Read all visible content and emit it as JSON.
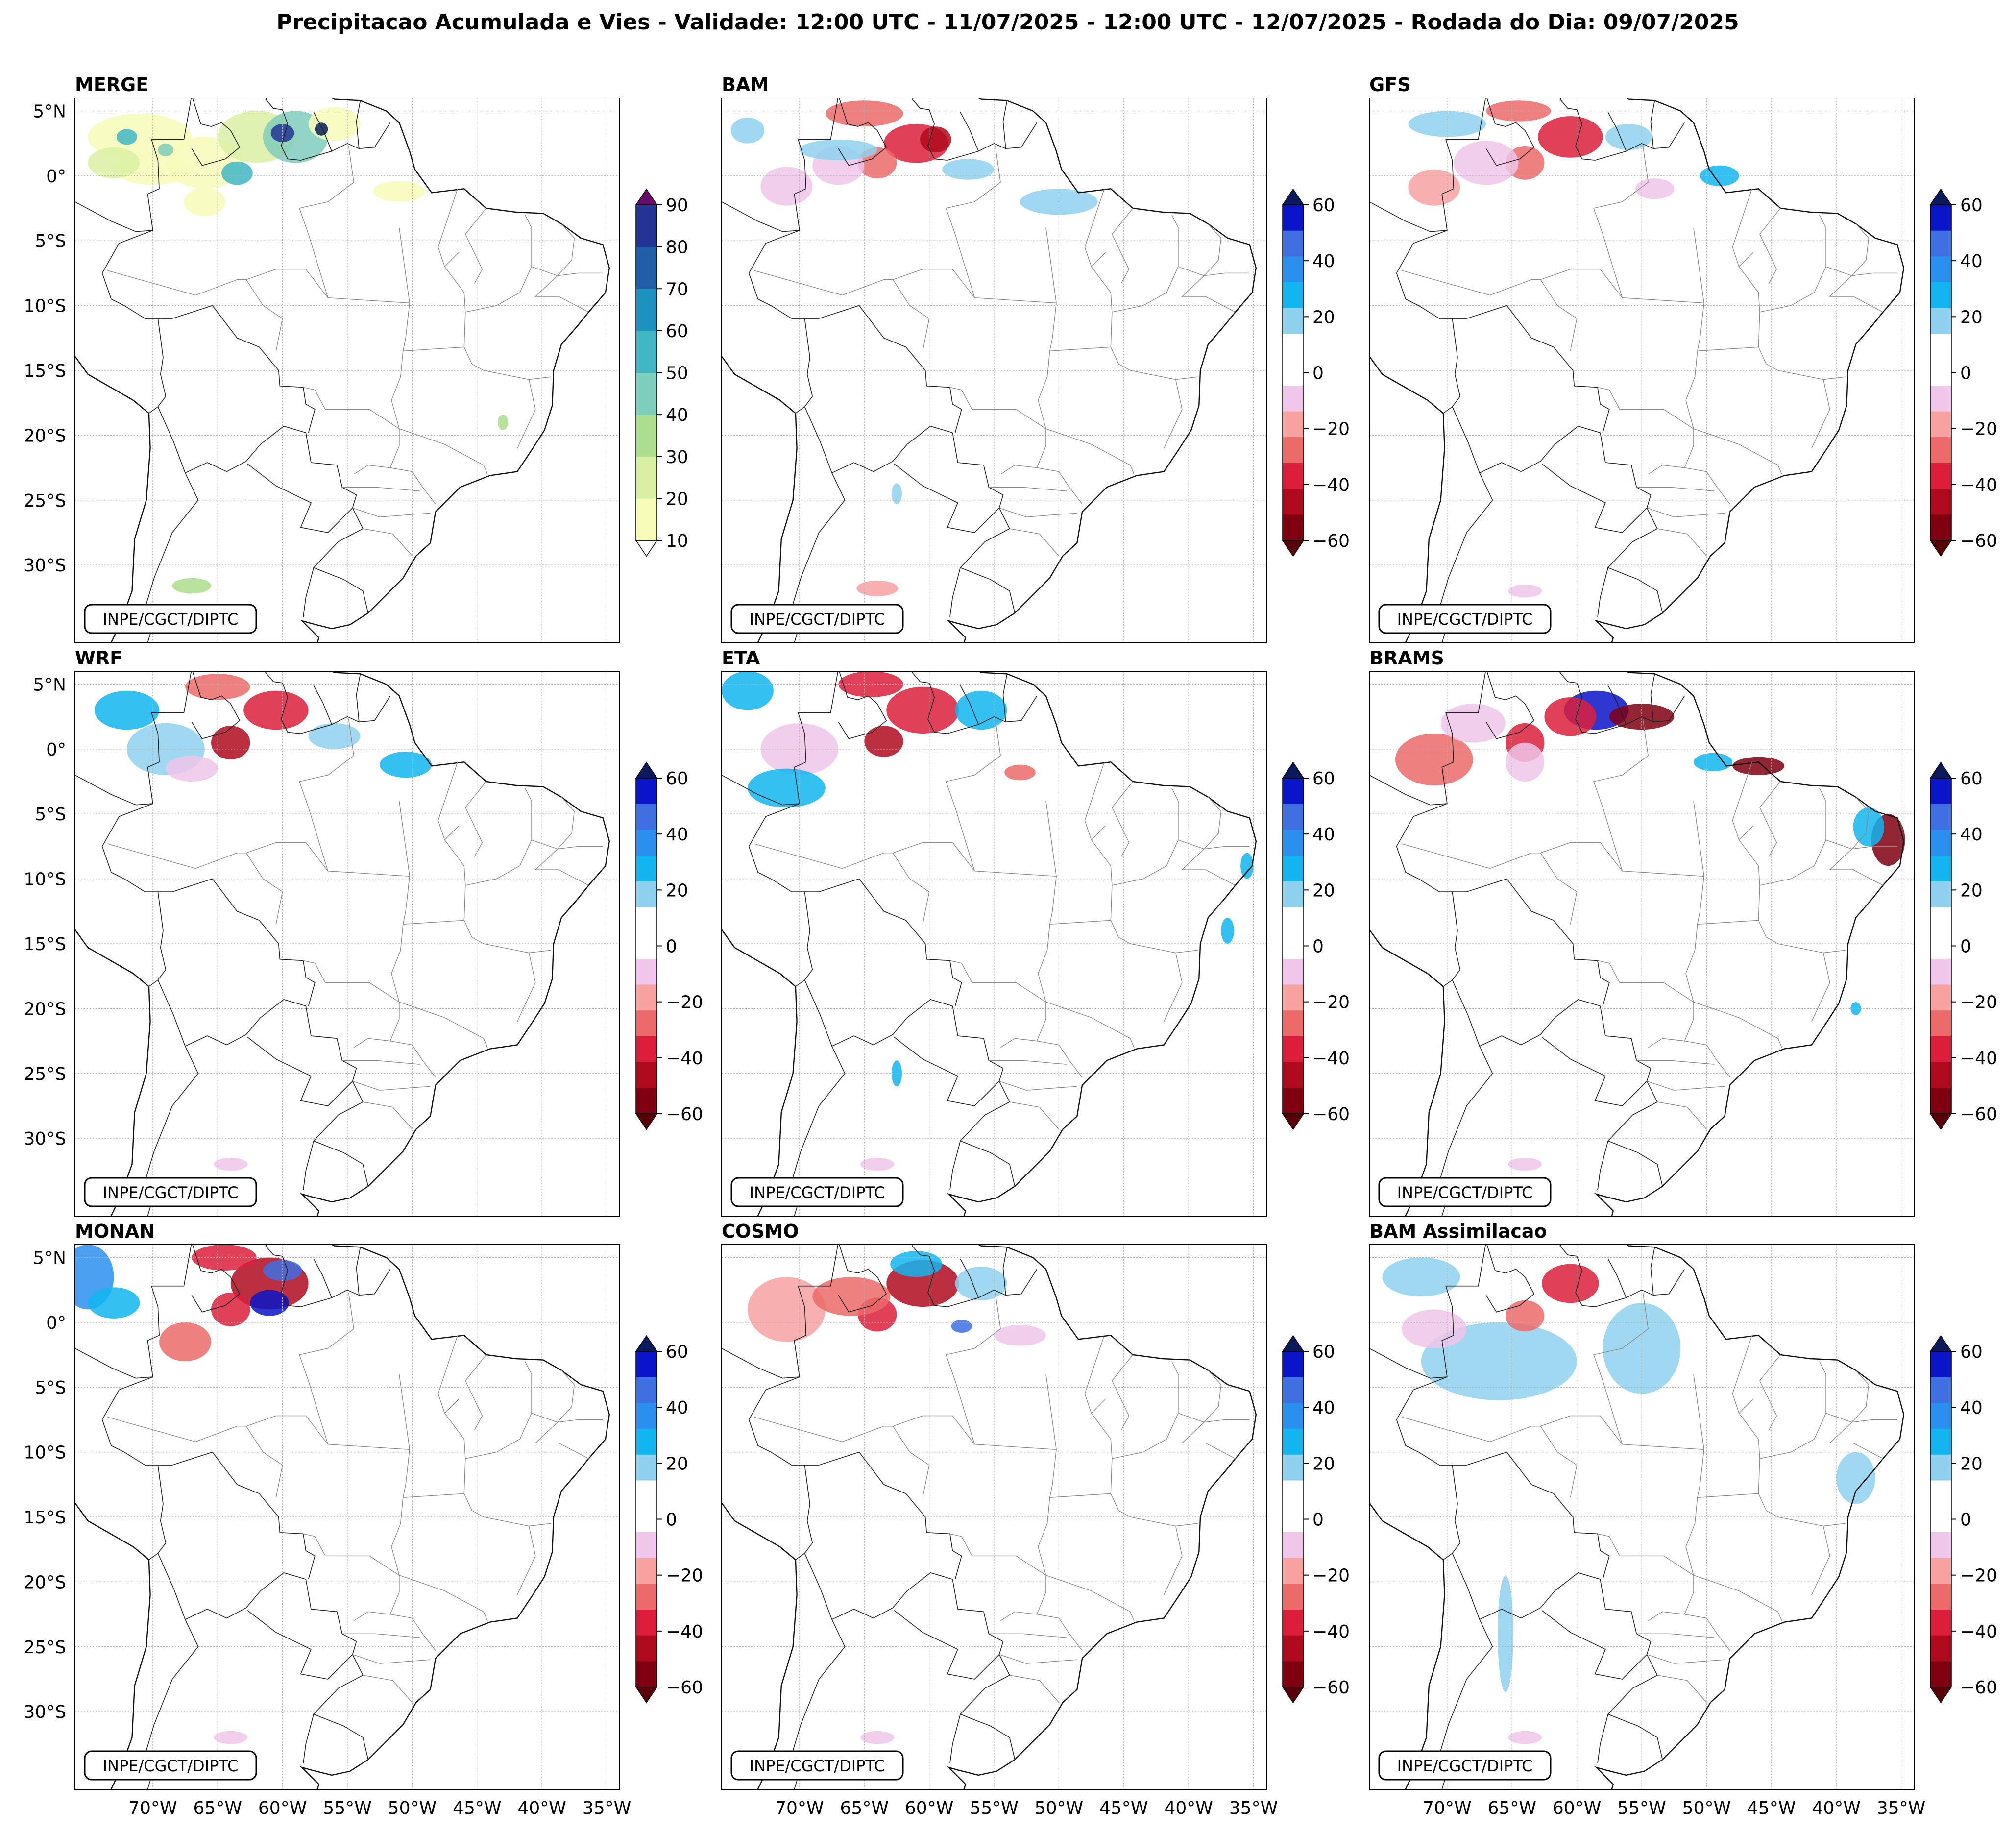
{
  "title": "Precipitacao Acumulada e Vies - Validade: 12:00 UTC - 11/07/2025 - 12:00 UTC - 12/07/2025 - Rodada do Dia: 09/07/2025",
  "credit": "INPE/CGCT/DIPTC",
  "lat_labels": [
    "5°N",
    "0°",
    "5°S",
    "10°S",
    "15°S",
    "20°S",
    "25°S",
    "30°S"
  ],
  "lon_labels": [
    "70°W",
    "65°W",
    "60°W",
    "55°W",
    "50°W",
    "45°W",
    "40°W",
    "35°W"
  ],
  "merge_colorbar": {
    "ticks": [
      "10",
      "20",
      "30",
      "40",
      "50",
      "60",
      "70",
      "80",
      "90"
    ],
    "colors": [
      "#f7fcb9",
      "#d9f0a3",
      "#addd8e",
      "#7fcdbb",
      "#41b6c4",
      "#1d91c0",
      "#225ea8",
      "#253494",
      "#081d58"
    ],
    "over_color": "#6a0a6a"
  },
  "bias_colorbar": {
    "ticks": [
      "60",
      "40",
      "20",
      "0",
      "−20",
      "−40",
      "−60"
    ],
    "colors_top_to_bottom": [
      "#0a14c8",
      "#3f6fe0",
      "#2b8ff0",
      "#12b5f0",
      "#8fd0ee",
      "#ffffff",
      "#ffffff",
      "#f0c6ea",
      "#f7a1a1",
      "#ec6a6a",
      "#dc1e3c",
      "#b00a1e",
      "#800011"
    ],
    "over_color": "#0a1a5c",
    "under_color": "#5a0008"
  },
  "panels": [
    {
      "name": "MERGE",
      "type": "precip"
    },
    {
      "name": "BAM",
      "type": "bias"
    },
    {
      "name": "GFS",
      "type": "bias"
    },
    {
      "name": "WRF",
      "type": "bias"
    },
    {
      "name": "ETA",
      "type": "bias"
    },
    {
      "name": "BRAMS",
      "type": "bias"
    },
    {
      "name": "MONAN",
      "type": "bias"
    },
    {
      "name": "COSMO",
      "type": "bias"
    },
    {
      "name": "BAM Assimilacao",
      "type": "bias"
    }
  ]
}
